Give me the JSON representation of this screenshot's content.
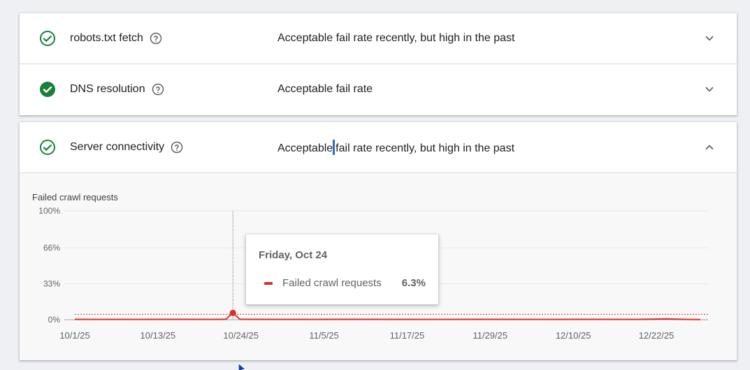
{
  "rows": [
    {
      "title": "robots.txt fetch",
      "status": "Acceptable fail rate recently, but high in the past",
      "check_style": "outline",
      "expanded": false
    },
    {
      "title": "DNS resolution",
      "status": "Acceptable fail rate",
      "check_style": "filled",
      "expanded": false
    }
  ],
  "server_row": {
    "title": "Server connectivity",
    "status_before_cursor": "Acceptable",
    "status_after_cursor": "fail rate recently, but high in the past",
    "expanded": true
  },
  "icons": {
    "check": "check-circle-icon",
    "help": "help-circle-icon",
    "expand": "chevron-down-icon",
    "collapse": "chevron-up-icon"
  },
  "colors": {
    "check_green": "#188038",
    "series_red": "#d93025",
    "accent_blue": "#3367d6"
  },
  "chart_data": {
    "type": "line",
    "title": "Failed crawl requests",
    "y_ticks": [
      "100%",
      "66%",
      "33%",
      "0%"
    ],
    "y_tick_values": [
      100,
      66,
      33,
      0
    ],
    "ylim": [
      0,
      100
    ],
    "x_ticks": [
      "10/1/25",
      "10/13/25",
      "10/24/25",
      "11/5/25",
      "11/17/25",
      "11/29/25",
      "12/10/25",
      "12/22/25"
    ],
    "x_range": [
      "2025-10-01",
      "2025-12-31"
    ],
    "threshold": 5,
    "series": [
      {
        "name": "Failed crawl requests",
        "color": "#d93025",
        "points": [
          [
            "2025-10-01",
            0.4
          ],
          [
            "2025-10-06",
            0.3
          ],
          [
            "2025-10-11",
            0.3
          ],
          [
            "2025-10-16",
            0.4
          ],
          [
            "2025-10-21",
            0.3
          ],
          [
            "2025-10-23",
            0.5
          ],
          [
            "2025-10-24",
            6.3
          ],
          [
            "2025-10-25",
            0.5
          ],
          [
            "2025-10-30",
            0.3
          ],
          [
            "2025-11-05",
            0.3
          ],
          [
            "2025-11-10",
            0.4
          ],
          [
            "2025-11-17",
            0.3
          ],
          [
            "2025-11-24",
            0.3
          ],
          [
            "2025-11-29",
            0.4
          ],
          [
            "2025-12-05",
            0.3
          ],
          [
            "2025-12-10",
            0.3
          ],
          [
            "2025-12-15",
            0.4
          ],
          [
            "2025-12-22",
            0.3
          ],
          [
            "2025-12-26",
            0.8
          ],
          [
            "2025-12-29",
            0.3
          ],
          [
            "2025-12-31",
            0.2
          ]
        ]
      }
    ],
    "highlight": {
      "date": "2025-10-24"
    }
  },
  "tooltip": {
    "date": "Friday, Oct 24",
    "series_label": "Failed crawl requests",
    "value": "6.3%"
  }
}
